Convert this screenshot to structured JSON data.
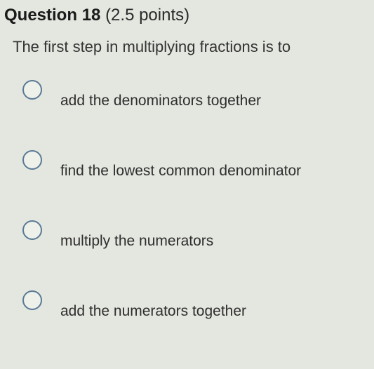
{
  "question": {
    "number_prefix": "Question",
    "number": "18",
    "points_text": "(2.5 points)",
    "prompt": "The first step in multiplying fractions is to",
    "options": [
      {
        "label": "add the denominators together",
        "selected": false
      },
      {
        "label": "find the lowest common denominator",
        "selected": false
      },
      {
        "label": "multiply the numerators",
        "selected": false
      },
      {
        "label": "add the numerators together",
        "selected": false
      }
    ]
  },
  "styles": {
    "background_color": "#e4e7e0",
    "text_color": "#2a2a2a",
    "radio_border_color": "#5a7a95",
    "radio_bg": "#eef0ea",
    "header_fontsize": 24,
    "prompt_fontsize": 22,
    "option_fontsize": 21,
    "radio_size": 28
  }
}
